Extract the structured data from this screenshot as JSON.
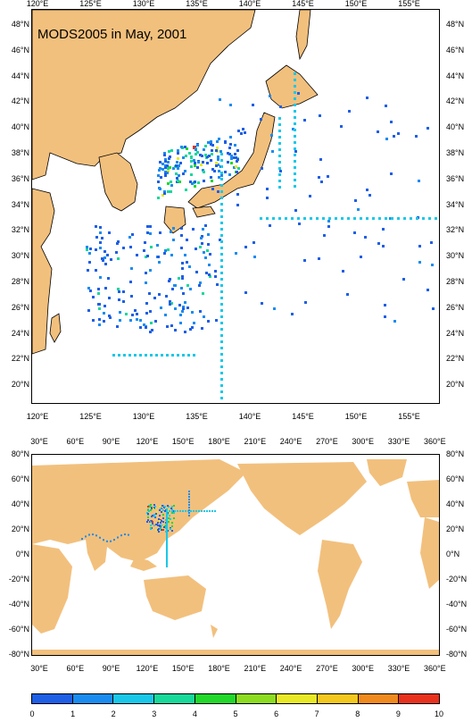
{
  "title": "MODS2005 in May, 2001",
  "colors": {
    "land": "#f2c07d",
    "ocean": "#ffffff",
    "border": "#000000",
    "scale": [
      "#1e5fe6",
      "#1a8cf0",
      "#19c8e8",
      "#18d89a",
      "#22d82a",
      "#8cdc20",
      "#e8e826",
      "#f4c81e",
      "#f08a1e",
      "#e8321e"
    ]
  },
  "map1": {
    "lon_labels": [
      "120°E",
      "125°E",
      "130°E",
      "135°E",
      "140°E",
      "145°E",
      "150°E",
      "155°E"
    ],
    "lat_labels": [
      "48°N",
      "46°N",
      "44°N",
      "42°N",
      "40°N",
      "38°N",
      "36°N",
      "34°N",
      "32°N",
      "30°N",
      "28°N",
      "26°N",
      "24°N",
      "22°N",
      "20°N"
    ]
  },
  "map2": {
    "lon_labels": [
      "30°E",
      "60°E",
      "90°E",
      "120°E",
      "150°E",
      "180°E",
      "210°E",
      "240°E",
      "270°E",
      "300°E",
      "330°E",
      "360°E"
    ],
    "lat_labels": [
      "80°N",
      "60°N",
      "40°N",
      "20°N",
      "0°N",
      "-20°N",
      "-40°N",
      "-60°N",
      "-80°N"
    ]
  },
  "colorbar": {
    "labels": [
      "0",
      "1",
      "2",
      "3",
      "4",
      "5",
      "6",
      "7",
      "8",
      "9",
      "10"
    ]
  }
}
